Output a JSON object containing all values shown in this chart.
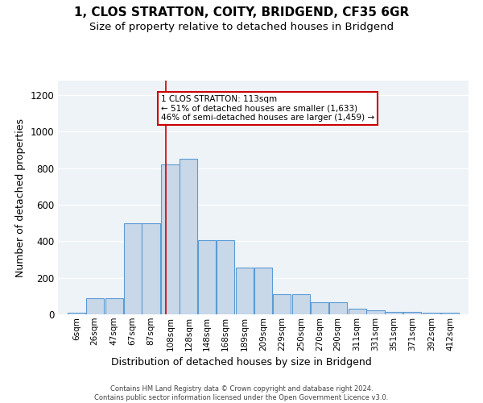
{
  "title1": "1, CLOS STRATTON, COITY, BRIDGEND, CF35 6GR",
  "title2": "Size of property relative to detached houses in Bridgend",
  "xlabel": "Distribution of detached houses by size in Bridgend",
  "ylabel": "Number of detached properties",
  "bar_values": [
    10,
    90,
    90,
    500,
    500,
    820,
    850,
    405,
    405,
    255,
    255,
    110,
    110,
    65,
    65,
    30,
    20,
    15,
    15,
    10,
    10
  ],
  "bin_edges": [
    6,
    26,
    47,
    67,
    87,
    108,
    128,
    148,
    168,
    189,
    209,
    229,
    250,
    270,
    290,
    311,
    331,
    351,
    371,
    392,
    412
  ],
  "tick_labels": [
    "6sqm",
    "26sqm",
    "47sqm",
    "67sqm",
    "87sqm",
    "108sqm",
    "128sqm",
    "148sqm",
    "168sqm",
    "189sqm",
    "209sqm",
    "229sqm",
    "250sqm",
    "270sqm",
    "290sqm",
    "311sqm",
    "331sqm",
    "351sqm",
    "371sqm",
    "392sqm",
    "412sqm"
  ],
  "bar_color": "#c8d8e8",
  "bar_edge_color": "#5b9bd5",
  "vline_x": 113,
  "vline_color": "#cc0000",
  "annotation_text": "1 CLOS STRATTON: 113sqm\n← 51% of detached houses are smaller (1,633)\n46% of semi-detached houses are larger (1,459) →",
  "ylim": [
    0,
    1280
  ],
  "bg_color": "#eef3f8",
  "footer": "Contains HM Land Registry data © Crown copyright and database right 2024.\nContains public sector information licensed under the Open Government Licence v3.0.",
  "title1_fontsize": 11,
  "title2_fontsize": 9.5,
  "xlabel_fontsize": 9,
  "ylabel_fontsize": 9
}
